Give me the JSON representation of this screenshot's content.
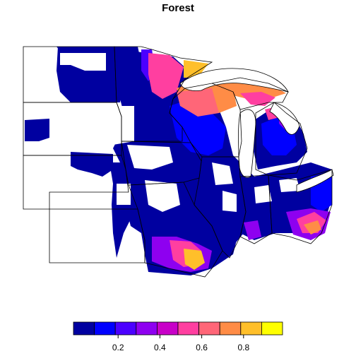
{
  "map": {
    "title": "Forest",
    "colors": {
      "background": "#ffffff",
      "state_border": "#000000",
      "county_border": "#7f7f7f"
    }
  },
  "legend": {
    "bins": [
      {
        "color": "#0000a0"
      },
      {
        "color": "#0000ff"
      },
      {
        "color": "#4b00ff"
      },
      {
        "color": "#8e00f0"
      },
      {
        "color": "#c800c8"
      },
      {
        "color": "#ff3fa0"
      },
      {
        "color": "#ff6678"
      },
      {
        "color": "#ff8c46"
      },
      {
        "color": "#ffbf2a"
      },
      {
        "color": "#ffff00"
      }
    ],
    "tick_labels": [
      "0.2",
      "0.4",
      "0.6",
      "0.8"
    ],
    "range": [
      0,
      1
    ]
  }
}
